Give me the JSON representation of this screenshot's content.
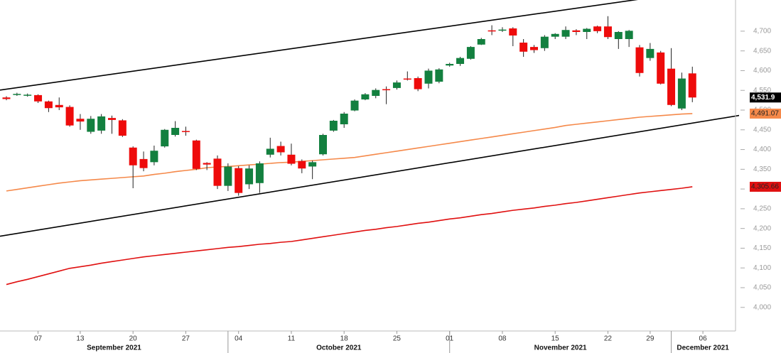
{
  "chart_data": {
    "type": "candlestick",
    "categories": [
      null,
      null,
      null,
      "07",
      null,
      null,
      null,
      "13",
      null,
      null,
      null,
      null,
      "20",
      null,
      null,
      null,
      null,
      "27",
      null,
      null,
      null,
      null,
      "04",
      null,
      null,
      null,
      null,
      "11",
      null,
      null,
      null,
      null,
      "18",
      null,
      null,
      null,
      null,
      "25",
      null,
      null,
      null,
      null,
      "01",
      null,
      null,
      null,
      null,
      "08",
      null,
      null,
      null,
      null,
      "15",
      null,
      null,
      null,
      null,
      "22",
      null,
      null,
      null,
      "29",
      null,
      null,
      null,
      null,
      "06"
    ],
    "months": [
      "September 2021",
      "October 2021",
      "November 2021",
      "December 2021"
    ],
    "open": [
      4532,
      4540,
      4538,
      4538,
      4522,
      4513,
      4508,
      4478,
      4445,
      4448,
      4480,
      4474,
      4405,
      4376,
      4368,
      4408,
      4437,
      4447,
      4423,
      4366,
      4377,
      4308,
      4353,
      4312,
      4315,
      4387,
      4409,
      4387,
      4371,
      4357,
      4388,
      4448,
      4464,
      4499,
      4527,
      4536,
      4553,
      4556,
      4580,
      4581,
      4567,
      4572,
      4613,
      4617,
      4630,
      4666,
      4702,
      4703,
      4707,
      4671,
      4660,
      4657,
      4686,
      4686,
      4702,
      4698,
      4712,
      4712,
      4680,
      4680,
      4659,
      4632,
      4646,
      4605,
      4504,
      4593,
      null
    ],
    "high": [
      4535,
      4544,
      4542,
      4540,
      4524,
      4532,
      4512,
      4490,
      4485,
      4490,
      4486,
      4477,
      4408,
      4395,
      4410,
      4452,
      4472,
      4458,
      4425,
      4368,
      4385,
      4365,
      4358,
      4360,
      4370,
      4430,
      4420,
      4415,
      4375,
      4372,
      4440,
      4475,
      4495,
      4527,
      4543,
      4555,
      4560,
      4575,
      4598,
      4585,
      4605,
      4606,
      4620,
      4635,
      4662,
      4683,
      4715,
      4710,
      4710,
      4680,
      4665,
      4690,
      4695,
      4712,
      4705,
      4708,
      4714,
      4738,
      4700,
      4703,
      4665,
      4670,
      4650,
      4657,
      4595,
      4610,
      null
    ],
    "low": [
      4525,
      4536,
      4534,
      4518,
      4495,
      4500,
      4458,
      4450,
      4440,
      4440,
      4440,
      4432,
      4302,
      4345,
      4360,
      4405,
      4433,
      4435,
      4348,
      4348,
      4300,
      4295,
      4283,
      4300,
      4290,
      4380,
      4385,
      4360,
      4340,
      4325,
      4385,
      4445,
      4455,
      4497,
      4525,
      4530,
      4515,
      4552,
      4575,
      4548,
      4555,
      4568,
      4610,
      4612,
      4628,
      4665,
      4690,
      4698,
      4662,
      4635,
      4645,
      4650,
      4680,
      4680,
      4690,
      4680,
      4695,
      4680,
      4655,
      4660,
      4585,
      4625,
      4565,
      4510,
      4500,
      4520,
      null
    ],
    "close": [
      4528,
      4541,
      4539,
      4522,
      4505,
      4507,
      4461,
      4471,
      4478,
      4484,
      4475,
      4435,
      4360,
      4353,
      4397,
      4450,
      4455,
      4445,
      4351,
      4362,
      4308,
      4357,
      4290,
      4352,
      4365,
      4402,
      4393,
      4364,
      4352,
      4368,
      4437,
      4473,
      4491,
      4524,
      4540,
      4551,
      4551,
      4570,
      4578,
      4553,
      4600,
      4603,
      4617,
      4632,
      4660,
      4680,
      4700,
      4704,
      4689,
      4648,
      4652,
      4686,
      4693,
      4703,
      4698,
      4706,
      4700,
      4685,
      4698,
      4701,
      4594,
      4655,
      4567,
      4513,
      4580,
      4531.9,
      null
    ],
    "close_label": "4,531.9",
    "up_color": "#13803f",
    "down_color": "#ee0b0b",
    "lines": [
      {
        "color": "#f5894a",
        "label": "4,491.07",
        "values": [
          4295,
          4299,
          4303,
          4307,
          4311,
          4315,
          4318,
          4321,
          4323,
          4325,
          4327,
          4329,
          4331,
          4333,
          4337,
          4340,
          4344,
          4347,
          4350,
          4354,
          4356,
          4357,
          4359,
          4361,
          4363,
          4365,
          4367,
          4368,
          4370,
          4372,
          4374,
          4376,
          4378,
          4380,
          4384,
          4388,
          4392,
          4396,
          4400,
          4404,
          4408,
          4412,
          4416,
          4420,
          4424,
          4428,
          4432,
          4436,
          4440,
          4444,
          4448,
          4452,
          4456,
          4461,
          4464,
          4467,
          4470,
          4473,
          4476,
          4479,
          4482,
          4484,
          4486,
          4488,
          4490,
          4491.07,
          null
        ]
      },
      {
        "color": "#e01010",
        "label": "4,305.66",
        "values": [
          4058,
          4065,
          4071,
          4078,
          4085,
          4092,
          4099,
          4103,
          4107,
          4112,
          4116,
          4120,
          4124,
          4128,
          4131,
          4134,
          4137,
          4140,
          4143,
          4146,
          4149,
          4152,
          4154,
          4157,
          4160,
          4162,
          4165,
          4167,
          4171,
          4175,
          4179,
          4183,
          4187,
          4191,
          4195,
          4198,
          4202,
          4205,
          4209,
          4213,
          4216,
          4220,
          4224,
          4227,
          4231,
          4235,
          4238,
          4242,
          4246,
          4249,
          4252,
          4256,
          4259,
          4263,
          4266,
          4270,
          4274,
          4278,
          4282,
          4286,
          4290,
          4293,
          4296,
          4299,
          4302,
          4305.66,
          null
        ]
      }
    ],
    "trendlines": [
      {
        "color": "#000000",
        "start": 4553,
        "end": 4800
      },
      {
        "color": "#000000",
        "start": 4183,
        "end": 4467
      }
    ],
    "ylim": [
      3942,
      4779
    ],
    "yticks": [
      {
        "value": 4000,
        "label": "4,000"
      },
      {
        "value": 4050,
        "label": "4,050"
      },
      {
        "value": 4100,
        "label": "4,100"
      },
      {
        "value": 4150,
        "label": "4,150"
      },
      {
        "value": 4200,
        "label": "4,200"
      },
      {
        "value": 4250,
        "label": "4,250"
      },
      {
        "value": 4300,
        "label": "4,300"
      },
      {
        "value": 4350,
        "label": "4,350"
      },
      {
        "value": 4400,
        "label": "4,400"
      },
      {
        "value": 4450,
        "label": "4,450"
      },
      {
        "value": 4500,
        "label": "4,500"
      },
      {
        "value": 4550,
        "label": "4,550"
      },
      {
        "value": 4600,
        "label": "4,600"
      },
      {
        "value": 4650,
        "label": "4,650"
      },
      {
        "value": 4700,
        "label": "4,700"
      }
    ]
  }
}
